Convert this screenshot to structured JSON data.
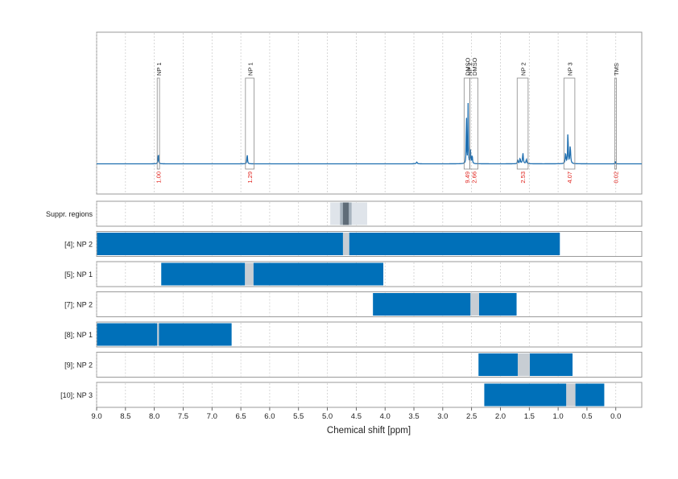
{
  "chart_data": {
    "type": "line",
    "xlabel": "Chemical shift [ppm]",
    "xlim": [
      9.0,
      -0.45
    ],
    "x_reversed": true,
    "x_ticks": [
      "9.0",
      "8.5",
      "8.0",
      "7.5",
      "7.0",
      "6.5",
      "6.0",
      "5.5",
      "5.0",
      "4.5",
      "4.0",
      "3.5",
      "3.0",
      "2.5",
      "2.0",
      "1.5",
      "1.0",
      "0.5",
      "0.0"
    ],
    "grid": true,
    "spectrum": {
      "baseline_note": "",
      "peaks": [
        {
          "x": 7.93,
          "h": 0.12,
          "w": 0.006
        },
        {
          "x": 6.39,
          "h": 0.11,
          "w": 0.006
        },
        {
          "x": 2.59,
          "h": 0.7,
          "w": 0.004
        },
        {
          "x": 2.56,
          "h": 0.68,
          "w": 0.004
        },
        {
          "x": 2.52,
          "h": 0.15,
          "w": 0.006
        },
        {
          "x": 2.49,
          "h": 0.1,
          "w": 0.006
        },
        {
          "x": 1.66,
          "h": 0.06,
          "w": 0.008
        },
        {
          "x": 1.61,
          "h": 0.12,
          "w": 0.008
        },
        {
          "x": 1.55,
          "h": 0.05,
          "w": 0.008
        },
        {
          "x": 0.83,
          "h": 0.4,
          "w": 0.005
        },
        {
          "x": 0.79,
          "h": 0.2,
          "w": 0.008
        },
        {
          "x": 0.87,
          "h": 0.12,
          "w": 0.008
        },
        {
          "x": 1.7,
          "h": 0.05,
          "w": 0.006
        },
        {
          "x": 3.45,
          "h": 0.02,
          "w": 0.01
        },
        {
          "x": 0.01,
          "h": 0.03,
          "w": 0.004
        }
      ],
      "regions": [
        {
          "label": "NP 1",
          "integral": "1.00",
          "x1": 7.95,
          "x2": 7.91
        },
        {
          "label": "NP 1",
          "integral": "1.29",
          "x1": 6.42,
          "x2": 6.27
        },
        {
          "label": "DMSO",
          "integral": "9.49",
          "x1": 2.63,
          "x2": 2.53
        },
        {
          "label": "DMSO",
          "integral": "2.66",
          "x1": 2.53,
          "x2": 2.39
        },
        {
          "label": "NP 2",
          "integral": "2.53",
          "x1": 1.71,
          "x2": 1.52
        },
        {
          "label": "NP 3",
          "integral": "4.07",
          "x1": 0.9,
          "x2": 0.71
        },
        {
          "label": "TMS",
          "integral": "0.02",
          "x1": 0.02,
          "x2": -0.01
        }
      ],
      "overlapping_extra_label": {
        "label": "NP 2",
        "x": 2.52
      }
    },
    "tracks": [
      {
        "label": "Suppr. regions",
        "kind": "suppression",
        "outer": [
          4.95,
          4.31
        ],
        "mid": [
          4.78,
          4.58
        ],
        "inner": [
          4.73,
          4.63
        ]
      },
      {
        "label": "[4]; NP 2",
        "bars": [
          [
            9.0,
            4.73
          ],
          [
            4.62,
            0.97
          ]
        ],
        "gap": [
          4.73,
          4.62
        ]
      },
      {
        "label": "[5]; NP 1",
        "bars": [
          [
            7.88,
            6.43
          ],
          [
            6.28,
            4.03
          ]
        ],
        "gap": [
          6.43,
          6.28
        ]
      },
      {
        "label": "[7]; NP 2",
        "bars": [
          [
            4.21,
            2.52
          ],
          [
            2.37,
            1.72
          ]
        ],
        "gap": [
          2.52,
          2.37
        ]
      },
      {
        "label": "[8]; NP 1",
        "bars": [
          [
            9.0,
            7.95
          ],
          [
            7.92,
            6.66
          ]
        ],
        "gap": [
          7.95,
          7.92
        ]
      },
      {
        "label": "[9]; NP 2",
        "bars": [
          [
            2.38,
            1.7
          ],
          [
            1.49,
            0.75
          ]
        ],
        "gap": [
          1.7,
          1.49
        ]
      },
      {
        "label": "[10]; NP 3",
        "bars": [
          [
            2.28,
            0.86
          ],
          [
            0.7,
            0.2
          ]
        ],
        "gap": [
          0.86,
          0.7
        ]
      }
    ],
    "colors": {
      "spectrum": "#1f6fb0",
      "bar": "#0070b9",
      "gap": "#c7cdd3",
      "suppr_outer": "#dfe4ea",
      "suppr_mid": "#a7b3be",
      "suppr_inner": "#5f6c78",
      "integral": "#e0201a",
      "frame": "#9a9a9a",
      "grid": "#c8c8c8"
    }
  }
}
